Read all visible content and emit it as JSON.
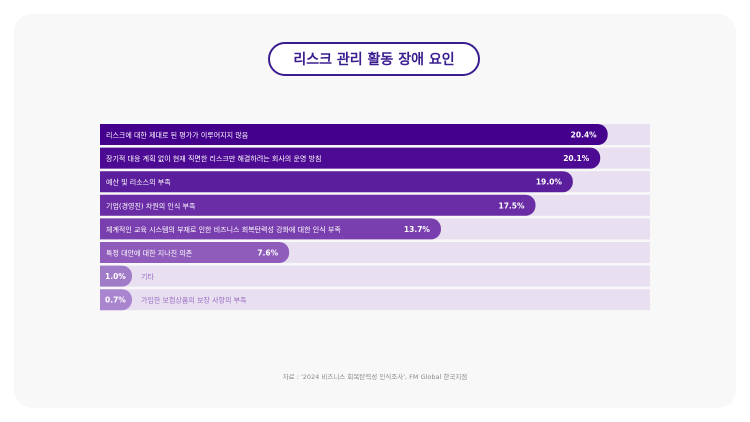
{
  "title": "리스크 관리 활동 장애 요인",
  "source": "자료 : '2024 비즈니스 회복탄력성 인식조사', FM Global 한국지점",
  "colors": {
    "track": "#e8e0f0",
    "accent": "#3a1d8f",
    "outside_label": "#9b6cc4"
  },
  "chart_data": {
    "type": "bar",
    "orientation": "horizontal",
    "title": "리스크 관리 활동 장애 요인",
    "unit": "%",
    "xlim": [
      0,
      22.1
    ],
    "categories": [
      "리스크에 대한 제대로 된 평가가 이루어지지 않음",
      "장기적 대응 계획 없이 현재 직면한 리스크만 해결하려는 회사의 운영 방침",
      "예산 및 리소스의 부족",
      "기업(경영진) 차원의 인식 부족",
      "체계적인 교육 시스템의 부재로 인한 비즈니스 회복탄력성 강화에 대한 인식 부족",
      "특정 대안에 대한 지나친 의존",
      "기타",
      "가입한 보험상품의 보장 사항의 부족"
    ],
    "values": [
      20.4,
      20.1,
      19.0,
      17.5,
      13.7,
      7.6,
      1.0,
      0.7
    ],
    "value_labels": [
      "20.4%",
      "20.1%",
      "19.0%",
      "17.5%",
      "13.7%",
      "7.6%",
      "1.0%",
      "0.7%"
    ],
    "bar_colors": [
      "#44008c",
      "#4d0a92",
      "#5b1e9c",
      "#6a2da5",
      "#7a3fae",
      "#8f5cbb",
      "#a07bc8",
      "#a985cf"
    ],
    "grid": false,
    "legend": "none"
  }
}
